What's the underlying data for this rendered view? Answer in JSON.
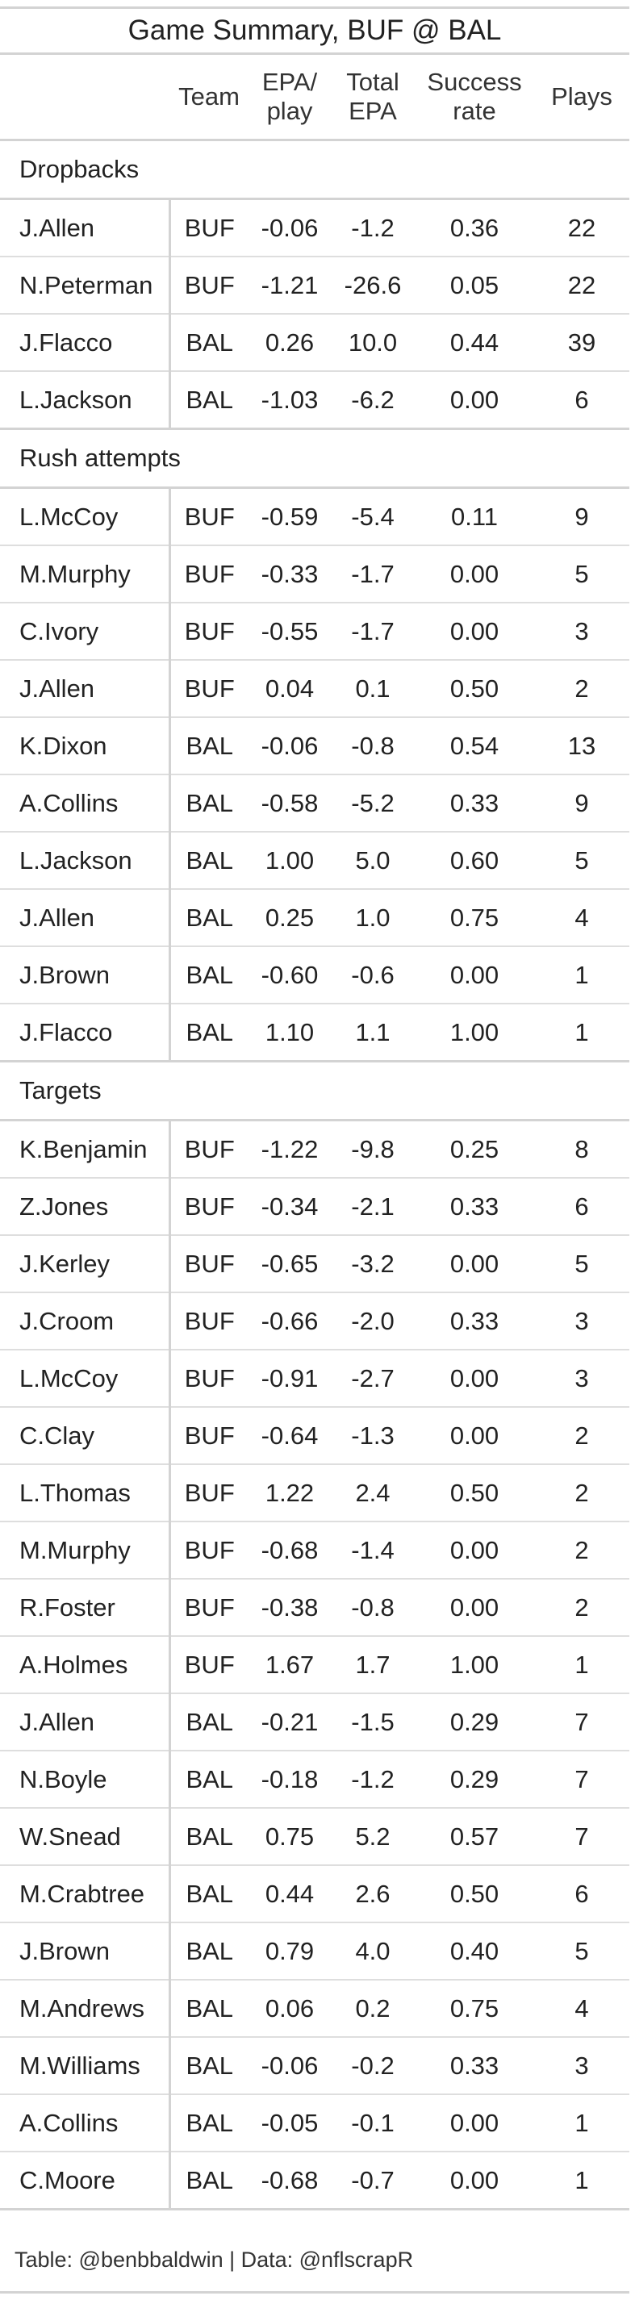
{
  "title": "Game Summary, BUF @ BAL",
  "columns": {
    "player": "",
    "team": "Team",
    "epa_play": [
      "EPA/",
      "play"
    ],
    "total_epa": [
      "Total",
      "EPA"
    ],
    "success_rate": [
      "Success",
      "rate"
    ],
    "plays": "Plays"
  },
  "groups": [
    {
      "label": "Dropbacks",
      "rows": [
        {
          "player": "J.Allen",
          "team": "BUF",
          "epa_play": "-0.06",
          "total_epa": "-1.2",
          "success_rate": "0.36",
          "plays": "22"
        },
        {
          "player": "N.Peterman",
          "team": "BUF",
          "epa_play": "-1.21",
          "total_epa": "-26.6",
          "success_rate": "0.05",
          "plays": "22"
        },
        {
          "player": "J.Flacco",
          "team": "BAL",
          "epa_play": "0.26",
          "total_epa": "10.0",
          "success_rate": "0.44",
          "plays": "39"
        },
        {
          "player": "L.Jackson",
          "team": "BAL",
          "epa_play": "-1.03",
          "total_epa": "-6.2",
          "success_rate": "0.00",
          "plays": "6"
        }
      ]
    },
    {
      "label": "Rush attempts",
      "rows": [
        {
          "player": "L.McCoy",
          "team": "BUF",
          "epa_play": "-0.59",
          "total_epa": "-5.4",
          "success_rate": "0.11",
          "plays": "9"
        },
        {
          "player": "M.Murphy",
          "team": "BUF",
          "epa_play": "-0.33",
          "total_epa": "-1.7",
          "success_rate": "0.00",
          "plays": "5"
        },
        {
          "player": "C.Ivory",
          "team": "BUF",
          "epa_play": "-0.55",
          "total_epa": "-1.7",
          "success_rate": "0.00",
          "plays": "3"
        },
        {
          "player": "J.Allen",
          "team": "BUF",
          "epa_play": "0.04",
          "total_epa": "0.1",
          "success_rate": "0.50",
          "plays": "2"
        },
        {
          "player": "K.Dixon",
          "team": "BAL",
          "epa_play": "-0.06",
          "total_epa": "-0.8",
          "success_rate": "0.54",
          "plays": "13"
        },
        {
          "player": "A.Collins",
          "team": "BAL",
          "epa_play": "-0.58",
          "total_epa": "-5.2",
          "success_rate": "0.33",
          "plays": "9"
        },
        {
          "player": "L.Jackson",
          "team": "BAL",
          "epa_play": "1.00",
          "total_epa": "5.0",
          "success_rate": "0.60",
          "plays": "5"
        },
        {
          "player": "J.Allen",
          "team": "BAL",
          "epa_play": "0.25",
          "total_epa": "1.0",
          "success_rate": "0.75",
          "plays": "4"
        },
        {
          "player": "J.Brown",
          "team": "BAL",
          "epa_play": "-0.60",
          "total_epa": "-0.6",
          "success_rate": "0.00",
          "plays": "1"
        },
        {
          "player": "J.Flacco",
          "team": "BAL",
          "epa_play": "1.10",
          "total_epa": "1.1",
          "success_rate": "1.00",
          "plays": "1"
        }
      ]
    },
    {
      "label": "Targets",
      "rows": [
        {
          "player": "K.Benjamin",
          "team": "BUF",
          "epa_play": "-1.22",
          "total_epa": "-9.8",
          "success_rate": "0.25",
          "plays": "8"
        },
        {
          "player": "Z.Jones",
          "team": "BUF",
          "epa_play": "-0.34",
          "total_epa": "-2.1",
          "success_rate": "0.33",
          "plays": "6"
        },
        {
          "player": "J.Kerley",
          "team": "BUF",
          "epa_play": "-0.65",
          "total_epa": "-3.2",
          "success_rate": "0.00",
          "plays": "5"
        },
        {
          "player": "J.Croom",
          "team": "BUF",
          "epa_play": "-0.66",
          "total_epa": "-2.0",
          "success_rate": "0.33",
          "plays": "3"
        },
        {
          "player": "L.McCoy",
          "team": "BUF",
          "epa_play": "-0.91",
          "total_epa": "-2.7",
          "success_rate": "0.00",
          "plays": "3"
        },
        {
          "player": "C.Clay",
          "team": "BUF",
          "epa_play": "-0.64",
          "total_epa": "-1.3",
          "success_rate": "0.00",
          "plays": "2"
        },
        {
          "player": "L.Thomas",
          "team": "BUF",
          "epa_play": "1.22",
          "total_epa": "2.4",
          "success_rate": "0.50",
          "plays": "2"
        },
        {
          "player": "M.Murphy",
          "team": "BUF",
          "epa_play": "-0.68",
          "total_epa": "-1.4",
          "success_rate": "0.00",
          "plays": "2"
        },
        {
          "player": "R.Foster",
          "team": "BUF",
          "epa_play": "-0.38",
          "total_epa": "-0.8",
          "success_rate": "0.00",
          "plays": "2"
        },
        {
          "player": "A.Holmes",
          "team": "BUF",
          "epa_play": "1.67",
          "total_epa": "1.7",
          "success_rate": "1.00",
          "plays": "1"
        },
        {
          "player": "J.Allen",
          "team": "BAL",
          "epa_play": "-0.21",
          "total_epa": "-1.5",
          "success_rate": "0.29",
          "plays": "7"
        },
        {
          "player": "N.Boyle",
          "team": "BAL",
          "epa_play": "-0.18",
          "total_epa": "-1.2",
          "success_rate": "0.29",
          "plays": "7"
        },
        {
          "player": "W.Snead",
          "team": "BAL",
          "epa_play": "0.75",
          "total_epa": "5.2",
          "success_rate": "0.57",
          "plays": "7"
        },
        {
          "player": "M.Crabtree",
          "team": "BAL",
          "epa_play": "0.44",
          "total_epa": "2.6",
          "success_rate": "0.50",
          "plays": "6"
        },
        {
          "player": "J.Brown",
          "team": "BAL",
          "epa_play": "0.79",
          "total_epa": "4.0",
          "success_rate": "0.40",
          "plays": "5"
        },
        {
          "player": "M.Andrews",
          "team": "BAL",
          "epa_play": "0.06",
          "total_epa": "0.2",
          "success_rate": "0.75",
          "plays": "4"
        },
        {
          "player": "M.Williams",
          "team": "BAL",
          "epa_play": "-0.06",
          "total_epa": "-0.2",
          "success_rate": "0.33",
          "plays": "3"
        },
        {
          "player": "A.Collins",
          "team": "BAL",
          "epa_play": "-0.05",
          "total_epa": "-0.1",
          "success_rate": "0.00",
          "plays": "1"
        },
        {
          "player": "C.Moore",
          "team": "BAL",
          "epa_play": "-0.68",
          "total_epa": "-0.7",
          "success_rate": "0.00",
          "plays": "1"
        }
      ]
    }
  ],
  "footer": "Table: @benbbaldwin | Data: @nflscrapR"
}
